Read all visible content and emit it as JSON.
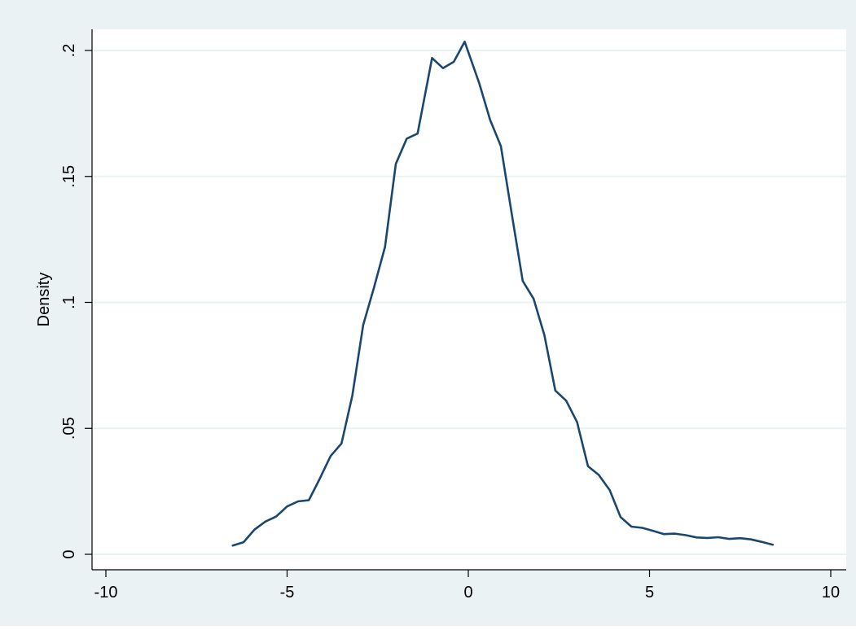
{
  "chart_data": {
    "type": "line",
    "title": "",
    "xlabel": "",
    "ylabel": "Density",
    "xlim": [
      -10,
      10
    ],
    "ylim": [
      0,
      0.2
    ],
    "x_ticks": [
      -10,
      -5,
      0,
      5,
      10
    ],
    "x_tick_labels": [
      "-10",
      "-5",
      "0",
      "5",
      "10"
    ],
    "y_ticks": [
      0,
      0.05,
      0.1,
      0.15,
      0.2
    ],
    "y_tick_labels": [
      "0",
      ".05",
      ".1",
      ".15",
      ".2"
    ],
    "grid": "horizontal",
    "legend": "none",
    "colors": {
      "outer_background": "#eaf2f3",
      "plot_background": "#ffffff",
      "gridline": "#eaf2f3",
      "axis": "#000000",
      "line": "#1a476f"
    },
    "series": [
      {
        "x": [
          -6.5,
          -6.2,
          -5.9,
          -5.6,
          -5.3,
          -5.0,
          -4.7,
          -4.4,
          -4.1,
          -3.8,
          -3.5,
          -3.2,
          -2.9,
          -2.6,
          -2.3,
          -2.0,
          -1.7,
          -1.4,
          -1.0,
          -0.7,
          -0.4,
          -0.1,
          0.3,
          0.6,
          0.9,
          1.2,
          1.5,
          1.8,
          2.1,
          2.4,
          2.7,
          3.0,
          3.3,
          3.6,
          3.9,
          4.2,
          4.5,
          4.8,
          5.1,
          5.4,
          5.7,
          6.0,
          6.3,
          6.6,
          6.9,
          7.2,
          7.5,
          7.8,
          8.1,
          8.4
        ],
        "y": [
          0.0035,
          0.0048,
          0.0098,
          0.013,
          0.015,
          0.019,
          0.021,
          0.0215,
          0.03,
          0.039,
          0.044,
          0.063,
          0.091,
          0.106,
          0.122,
          0.155,
          0.165,
          0.167,
          0.197,
          0.193,
          0.1955,
          0.2035,
          0.187,
          0.1725,
          0.162,
          0.135,
          0.1085,
          0.1015,
          0.087,
          0.065,
          0.061,
          0.0525,
          0.035,
          0.0315,
          0.0255,
          0.0148,
          0.011,
          0.0105,
          0.0093,
          0.008,
          0.0082,
          0.0076,
          0.0067,
          0.0065,
          0.0068,
          0.0061,
          0.0064,
          0.0059,
          0.0049,
          0.0038
        ]
      }
    ]
  }
}
